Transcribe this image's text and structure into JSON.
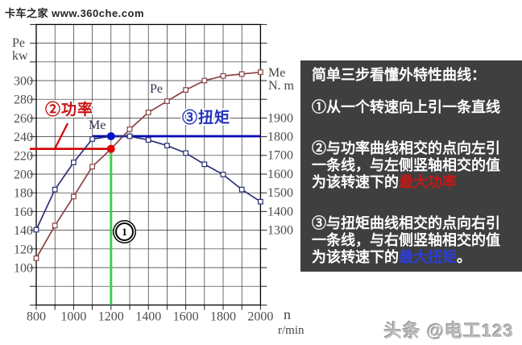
{
  "watermarks": {
    "top_left": "卡车之家 www.360che.com",
    "bottom_right": "头条 @电工123"
  },
  "chart_data": {
    "type": "line",
    "x_label": "n",
    "x_unit": "r/min",
    "x_axis": {
      "min": 800,
      "max": 2000,
      "grid_step": 100,
      "ticks": [
        800,
        1000,
        1200,
        1400,
        1600,
        1800,
        2000
      ]
    },
    "left_axis": {
      "title": "Pe",
      "unit": "kw",
      "ticks": [
        300,
        280,
        260,
        240,
        220,
        200,
        180,
        160,
        140,
        120,
        100
      ]
    },
    "right_axis": {
      "title": "Me",
      "unit": "N. m",
      "ticks": [
        1900,
        1800,
        1700,
        1600,
        1500,
        1400,
        1300
      ]
    },
    "x": [
      800,
      900,
      1000,
      1100,
      1200,
      1300,
      1400,
      1500,
      1600,
      1700,
      1800,
      1900,
      2000
    ],
    "series": [
      {
        "name": "Pe (power, kW)",
        "axis": "left",
        "color": "#8a4242",
        "values": [
          110,
          145,
          176,
          208,
          227,
          248,
          266,
          278,
          290,
          300,
          305,
          307,
          309
        ]
      },
      {
        "name": "Me (torque, N.m)",
        "axis": "right",
        "color": "#293076",
        "values": [
          1300,
          1515,
          1660,
          1785,
          1800,
          1800,
          1780,
          1750,
          1710,
          1650,
          1595,
          1515,
          1450
        ]
      }
    ],
    "annotations": {
      "marked_speed": 1200,
      "power_value": 227,
      "torque_value": 1800,
      "step1_badge": "1",
      "power_callout": "②功率",
      "torque_callout": "③扭矩",
      "power_curve_label": "Pe",
      "torque_curve_label": "Me",
      "colors": {
        "power_line": "#d40000",
        "torque_line": "#0000b4",
        "speed_line": "#3ecf52",
        "power_dot": "#e00000",
        "torque_dot": "#0010c8"
      }
    }
  },
  "panel": {
    "bg": "#3f3f3f",
    "title": "简单三步看懂外特性曲线：",
    "steps": [
      {
        "segments": [
          {
            "text": "①从一个转速向上引一条直线",
            "color": "#ffffff"
          }
        ]
      },
      {
        "segments": [
          {
            "text": "②与功率曲线相交的点向左引一条线，与左侧竖轴相交的值为该转速下的",
            "color": "#ffffff"
          },
          {
            "text": "最大功率",
            "color": "#c41818"
          }
        ]
      },
      {
        "segments": [
          {
            "text": "③与扭矩曲线相交的点向右引一条线，与右侧竖轴相交的值为该转速下的",
            "color": "#ffffff"
          },
          {
            "text": "最大扭矩",
            "color": "#2c3ed8"
          },
          {
            "text": "。",
            "color": "#ffffff"
          }
        ]
      }
    ]
  }
}
